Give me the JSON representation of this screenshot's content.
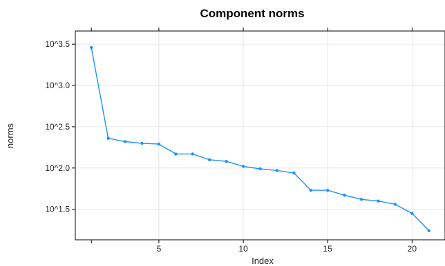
{
  "chart_data": {
    "type": "line",
    "title": "Component norms",
    "xlabel": "Index",
    "ylabel": "norms",
    "log_scale_y": true,
    "y_log_base": 10,
    "grid": true,
    "x_ticks": [
      5,
      10,
      15,
      20
    ],
    "y_ticks": [
      {
        "value": 1.5,
        "label": "10^1.5"
      },
      {
        "value": 2.0,
        "label": "10^2.0"
      },
      {
        "value": 2.5,
        "label": "10^2.5"
      },
      {
        "value": 3.0,
        "label": "10^3.0"
      },
      {
        "value": 3.5,
        "label": "10^3.5"
      }
    ],
    "xlim": [
      0.05,
      21.95
    ],
    "ylim_log10": [
      1.13,
      3.66
    ],
    "series": [
      {
        "color": "#1E90FF",
        "x": [
          1,
          2,
          3,
          4,
          5,
          6,
          7,
          8,
          9,
          10,
          11,
          12,
          13,
          14,
          15,
          16,
          17,
          18,
          19,
          20,
          21
        ],
        "y_log10": [
          3.46,
          2.36,
          2.32,
          2.3,
          2.29,
          2.17,
          2.17,
          2.1,
          2.08,
          2.02,
          1.99,
          1.97,
          1.94,
          1.73,
          1.73,
          1.67,
          1.62,
          1.6,
          1.56,
          1.45,
          1.24
        ]
      }
    ]
  }
}
